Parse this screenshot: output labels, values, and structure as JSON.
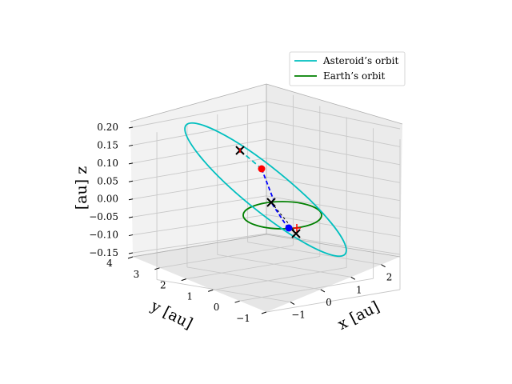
{
  "chart_data": {
    "type": "line3d",
    "axes": {
      "x": {
        "label": "$x$ [au]",
        "label_display": "x [au]",
        "ticks": [
          "−1",
          "0",
          "1",
          "2"
        ]
      },
      "y": {
        "label": "$y$ [au]",
        "label_display": "y [au]",
        "ticks": [
          "−1",
          "0",
          "1",
          "2",
          "3",
          "4"
        ]
      },
      "z": {
        "label": "$z$ [au]",
        "label_display": "[au] z",
        "ticks": [
          "−0.15",
          "−0.10",
          "−0.05",
          "0.00",
          "0.05",
          "0.10",
          "0.15",
          "0.20"
        ]
      }
    },
    "grid": true,
    "legend": {
      "placement": "top-right",
      "entries": [
        {
          "label": "Asteroid’s orbit",
          "color": "#00bfbf"
        },
        {
          "label": "Earth’s orbit",
          "color": "#008000"
        }
      ]
    },
    "series": [
      {
        "name": "Asteroid’s orbit",
        "color": "#00bfbf",
        "style": "solid ellipse"
      },
      {
        "name": "Earth’s orbit",
        "color": "#008000",
        "style": "solid ellipse"
      }
    ],
    "annotations": {
      "connector_color": "#0000ff",
      "red_point_color": "#ff0000",
      "blue_point_color": "#0000ff",
      "cross_color": "#000000"
    }
  }
}
